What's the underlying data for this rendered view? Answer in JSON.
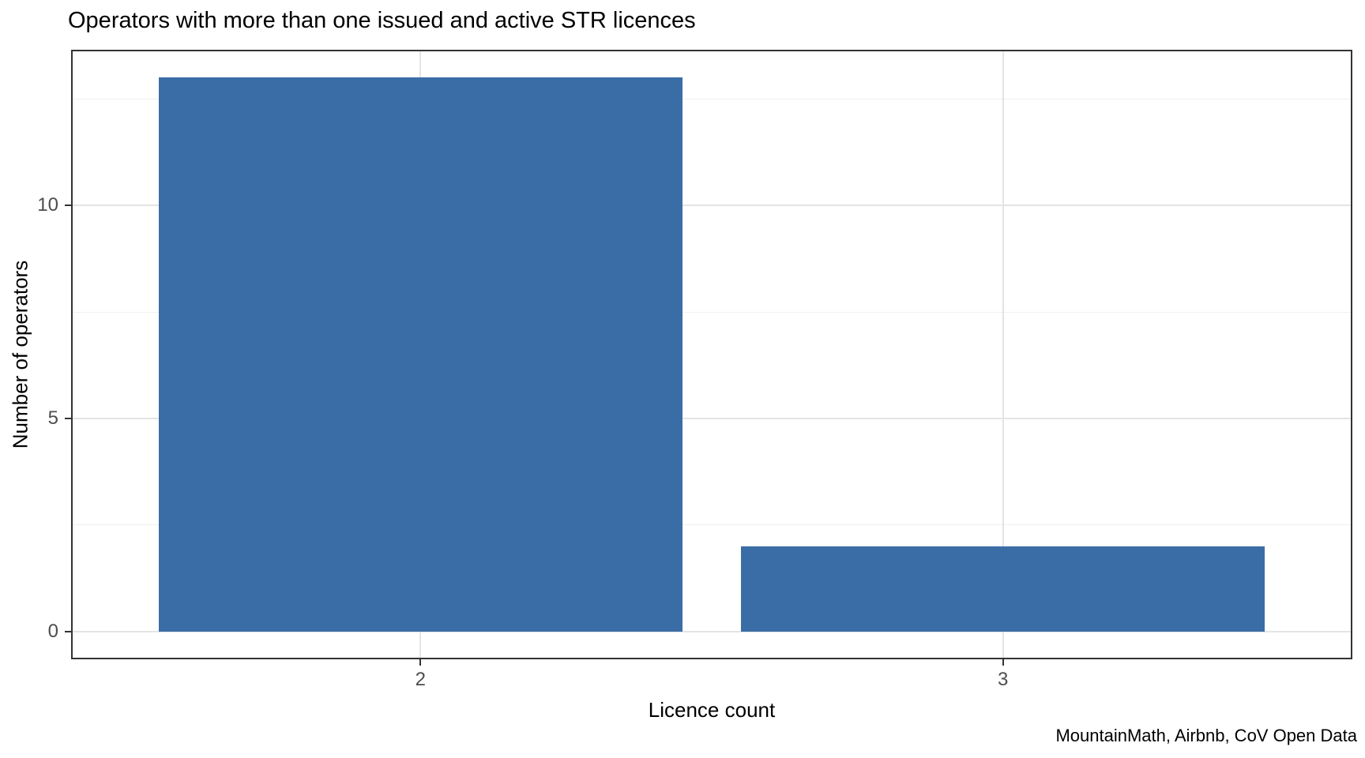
{
  "chart_data": {
    "type": "bar",
    "title": "Operators with more than one issued and active STR licences",
    "xlabel": "Licence count",
    "ylabel": "Number of operators",
    "caption": "MountainMath, Airbnb, CoV Open Data",
    "categories": [
      "2",
      "3"
    ],
    "x": [
      2,
      3
    ],
    "values": [
      13,
      2
    ],
    "bar_width": 0.9,
    "xlim": [
      1.4,
      3.6
    ],
    "ylim": [
      -0.65,
      13.65
    ],
    "x_ticks": [
      2,
      3
    ],
    "y_ticks": [
      0,
      5,
      10
    ],
    "y_tick_labels": [
      "0",
      "5",
      "10"
    ],
    "y_minor_ticks": [
      2.5,
      7.5,
      12.5
    ],
    "grid": "horizontal major and minor lines, vertical major lines only",
    "legend": "none",
    "colors": {
      "bar": "#3A6DA6",
      "grid_major": "#E4E4E4",
      "grid_minor": "#F0F0F0",
      "panel_border": "#333333",
      "tick": "#333333",
      "tick_label": "#4D4D4D",
      "text": "#000000",
      "background": "#FFFFFF"
    }
  }
}
